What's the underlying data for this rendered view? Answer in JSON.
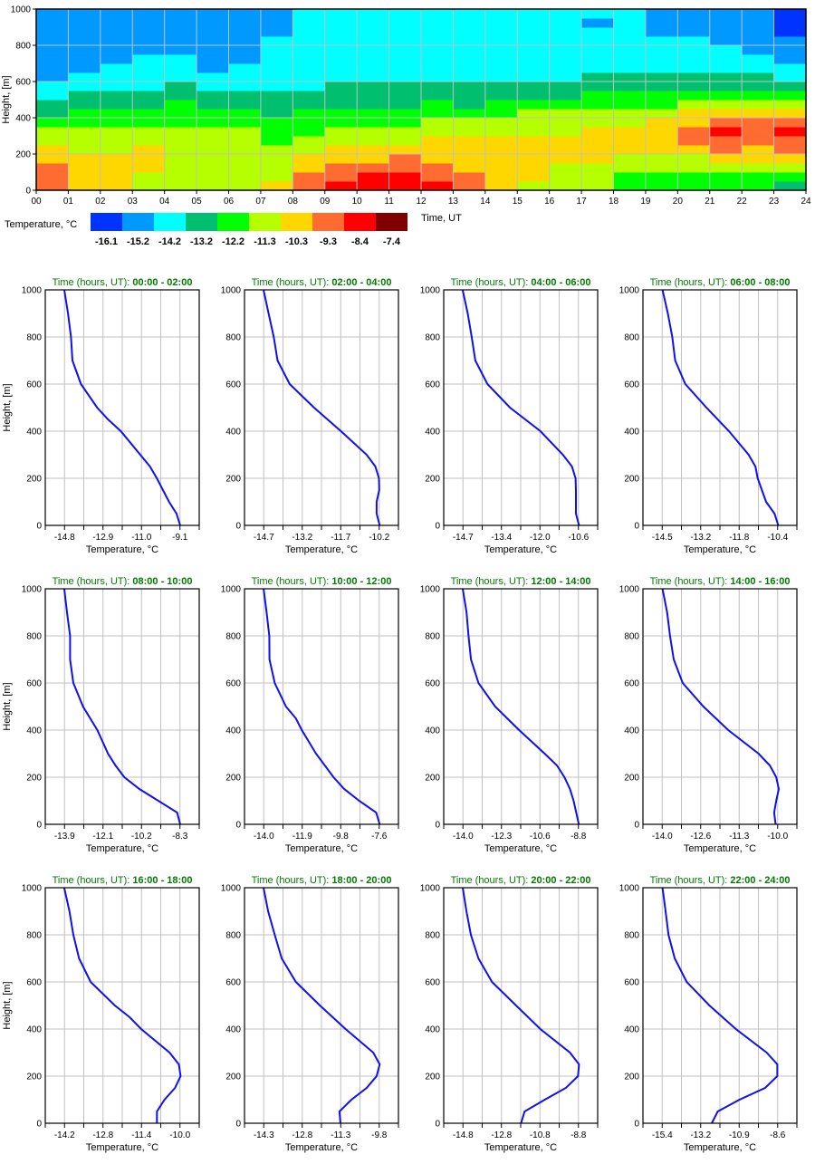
{
  "colors": {
    "scale": [
      "#0033ff",
      "#0099ff",
      "#00ffff",
      "#00c070",
      "#00ff00",
      "#b5ff00",
      "#ffd700",
      "#ff6b30",
      "#ff0000",
      "#800000"
    ],
    "profile_line": "#1010ee",
    "title": "#007a00",
    "grid": "#c0c0c0"
  },
  "chart_data": [
    {
      "type": "heatmap",
      "ylabel": "Height, [m]",
      "xlabel": "Time, UT",
      "xticks": [
        "00",
        "01",
        "02",
        "03",
        "04",
        "05",
        "06",
        "07",
        "08",
        "09",
        "10",
        "11",
        "12",
        "13",
        "14",
        "15",
        "16",
        "17",
        "18",
        "19",
        "20",
        "21",
        "22",
        "23",
        "24"
      ],
      "yticks": [
        "0",
        "200",
        "400",
        "600",
        "800",
        "1000"
      ],
      "xlim": [
        0,
        24
      ],
      "ylim": [
        0,
        1000
      ],
      "height_step_m": 50,
      "colorbar": {
        "label": "Temperature, °C",
        "values": [
          "-16.1",
          "-15.2",
          "-14.2",
          "-13.2",
          "-12.2",
          "-11.3",
          "-10.3",
          "-9.3",
          "-8.4",
          "-7.4"
        ]
      },
      "levels_by_hour_bottom_to_top": [
        [
          7,
          7,
          7,
          6,
          6,
          5,
          5,
          4,
          3,
          3,
          2,
          2,
          1,
          1,
          1,
          1,
          1,
          1,
          1,
          1
        ],
        [
          6,
          6,
          6,
          6,
          5,
          5,
          5,
          4,
          4,
          3,
          3,
          2,
          2,
          1,
          1,
          1,
          1,
          1,
          1,
          1
        ],
        [
          6,
          6,
          6,
          6,
          5,
          5,
          5,
          4,
          4,
          3,
          3,
          2,
          2,
          2,
          1,
          1,
          1,
          1,
          1,
          1
        ],
        [
          5,
          5,
          6,
          6,
          6,
          5,
          5,
          4,
          4,
          3,
          3,
          2,
          2,
          2,
          2,
          1,
          1,
          1,
          1,
          1
        ],
        [
          5,
          5,
          5,
          5,
          5,
          5,
          5,
          4,
          4,
          4,
          3,
          3,
          2,
          2,
          2,
          1,
          1,
          1,
          1,
          1
        ],
        [
          5,
          5,
          5,
          5,
          5,
          5,
          5,
          4,
          4,
          3,
          3,
          2,
          2,
          1,
          1,
          1,
          1,
          1,
          1,
          1
        ],
        [
          5,
          5,
          5,
          5,
          5,
          5,
          5,
          4,
          4,
          3,
          3,
          2,
          2,
          2,
          1,
          1,
          1,
          1,
          1,
          1
        ],
        [
          6,
          5,
          5,
          5,
          5,
          4,
          4,
          4,
          3,
          3,
          3,
          2,
          2,
          2,
          2,
          2,
          2,
          1,
          1,
          1
        ],
        [
          7,
          7,
          6,
          6,
          5,
          5,
          4,
          4,
          4,
          3,
          3,
          2,
          2,
          2,
          2,
          2,
          2,
          2,
          2,
          2
        ],
        [
          8,
          7,
          7,
          6,
          6,
          5,
          5,
          4,
          4,
          3,
          3,
          3,
          2,
          2,
          2,
          2,
          2,
          2,
          2,
          2
        ],
        [
          8,
          8,
          7,
          6,
          6,
          5,
          5,
          4,
          4,
          3,
          3,
          3,
          2,
          2,
          2,
          2,
          2,
          2,
          2,
          2
        ],
        [
          8,
          8,
          7,
          7,
          6,
          5,
          5,
          4,
          4,
          3,
          3,
          3,
          2,
          2,
          2,
          2,
          2,
          2,
          2,
          2
        ],
        [
          8,
          7,
          7,
          6,
          6,
          6,
          5,
          5,
          4,
          4,
          3,
          3,
          2,
          2,
          2,
          2,
          2,
          2,
          2,
          2
        ],
        [
          7,
          7,
          6,
          6,
          6,
          6,
          5,
          5,
          4,
          3,
          3,
          3,
          2,
          2,
          2,
          2,
          2,
          2,
          2,
          2
        ],
        [
          6,
          6,
          6,
          6,
          6,
          6,
          5,
          5,
          4,
          4,
          3,
          3,
          2,
          2,
          2,
          2,
          2,
          2,
          2,
          2
        ],
        [
          5,
          6,
          6,
          6,
          6,
          6,
          5,
          5,
          5,
          4,
          3,
          3,
          2,
          2,
          2,
          2,
          2,
          2,
          2,
          2
        ],
        [
          5,
          5,
          5,
          6,
          6,
          6,
          5,
          5,
          5,
          4,
          3,
          3,
          2,
          2,
          2,
          2,
          2,
          2,
          2,
          2
        ],
        [
          5,
          5,
          5,
          6,
          6,
          6,
          6,
          5,
          5,
          4,
          4,
          3,
          3,
          2,
          2,
          2,
          2,
          2,
          1,
          2
        ],
        [
          4,
          4,
          5,
          5,
          6,
          6,
          6,
          5,
          5,
          4,
          4,
          3,
          3,
          2,
          2,
          2,
          2,
          2,
          2,
          2
        ],
        [
          4,
          4,
          5,
          5,
          6,
          6,
          6,
          6,
          5,
          4,
          4,
          3,
          3,
          2,
          2,
          2,
          2,
          1,
          1,
          1
        ],
        [
          4,
          4,
          5,
          5,
          6,
          7,
          7,
          6,
          6,
          5,
          4,
          3,
          3,
          2,
          2,
          2,
          2,
          1,
          1,
          1
        ],
        [
          4,
          4,
          5,
          6,
          7,
          7,
          8,
          7,
          6,
          5,
          4,
          3,
          3,
          2,
          2,
          2,
          1,
          1,
          1,
          1
        ],
        [
          4,
          4,
          5,
          6,
          6,
          7,
          7,
          7,
          6,
          5,
          4,
          3,
          3,
          2,
          2,
          1,
          1,
          1,
          1,
          1
        ],
        [
          3,
          4,
          5,
          6,
          7,
          7,
          8,
          7,
          6,
          5,
          4,
          3,
          2,
          2,
          1,
          1,
          1,
          0,
          0,
          0
        ]
      ]
    },
    {
      "type": "line",
      "title_prefix": "Time (hours, UT): ",
      "xlabel": "Temperature, °C",
      "ylabel": "Height, [m]",
      "yticks": [
        "0",
        "200",
        "400",
        "600",
        "800",
        "1000"
      ],
      "ylim": [
        0,
        1000
      ],
      "panels": [
        {
          "range": "00:00 - 02:00",
          "xticks": [
            "-14.8",
            "-12.9",
            "-11.0",
            "-9.1"
          ],
          "h": [
            0,
            50,
            100,
            200,
            250,
            300,
            400,
            450,
            500,
            600,
            700,
            800,
            900,
            1000
          ],
          "t": [
            -9.09,
            -9.27,
            -9.64,
            -10.24,
            -10.58,
            -11.06,
            -12.02,
            -12.65,
            -13.19,
            -13.99,
            -14.41,
            -14.48,
            -14.63,
            -14.81
          ]
        },
        {
          "range": "02:00 - 04:00",
          "xticks": [
            "-14.7",
            "-13.2",
            "-11.7",
            "-10.2"
          ],
          "h": [
            0,
            50,
            100,
            150,
            200,
            250,
            300,
            400,
            500,
            600,
            700,
            800,
            900,
            1000
          ],
          "t": [
            -10.18,
            -10.3,
            -10.3,
            -10.2,
            -10.21,
            -10.35,
            -10.69,
            -11.69,
            -12.74,
            -13.69,
            -14.16,
            -14.31,
            -14.51,
            -14.71
          ]
        },
        {
          "range": "04:00 - 06:00",
          "xticks": [
            "-14.7",
            "-13.4",
            "-12.0",
            "-10.6"
          ],
          "h": [
            0,
            50,
            150,
            200,
            250,
            300,
            400,
            500,
            600,
            700,
            800,
            900,
            1000
          ],
          "t": [
            -10.58,
            -10.69,
            -10.69,
            -10.7,
            -10.83,
            -11.15,
            -11.95,
            -13.03,
            -13.83,
            -14.26,
            -14.39,
            -14.53,
            -14.71
          ]
        },
        {
          "range": "06:00 - 08:00",
          "xticks": [
            "-14.5",
            "-13.2",
            "-11.8",
            "-10.4"
          ],
          "h": [
            0,
            50,
            100,
            200,
            250,
            300,
            400,
            500,
            600,
            700,
            800,
            900,
            1000
          ],
          "t": [
            -10.38,
            -10.51,
            -10.81,
            -11.11,
            -11.19,
            -11.43,
            -12.13,
            -12.93,
            -13.68,
            -14.04,
            -14.14,
            -14.3,
            -14.49
          ]
        },
        {
          "range": "08:00 - 10:00",
          "xticks": [
            "-13.9",
            "-12.1",
            "-10.2",
            "-8.3"
          ],
          "h": [
            0,
            50,
            100,
            150,
            200,
            250,
            300,
            400,
            500,
            600,
            700,
            800,
            900,
            1000
          ],
          "t": [
            -8.29,
            -8.44,
            -9.35,
            -10.27,
            -11.0,
            -11.43,
            -11.79,
            -12.31,
            -13.0,
            -13.47,
            -13.63,
            -13.63,
            -13.78,
            -13.91
          ]
        },
        {
          "range": "10:00 - 12:00",
          "xticks": [
            "-14.0",
            "-11.9",
            "-9.8",
            "-7.6"
          ],
          "h": [
            0,
            50,
            100,
            150,
            200,
            300,
            400,
            450,
            500,
            600,
            700,
            800,
            900,
            1000
          ],
          "t": [
            -7.57,
            -7.77,
            -8.71,
            -9.54,
            -10.13,
            -11.1,
            -11.89,
            -12.22,
            -12.77,
            -13.39,
            -13.68,
            -13.69,
            -13.84,
            -14.01
          ]
        },
        {
          "range": "12:00 - 14:00",
          "xticks": [
            "-14.0",
            "-12.3",
            "-10.6",
            "-8.8"
          ],
          "h": [
            0,
            100,
            150,
            200,
            250,
            300,
            400,
            500,
            600,
            700,
            800,
            900,
            1000
          ],
          "t": [
            -8.78,
            -9.02,
            -9.18,
            -9.43,
            -9.77,
            -10.32,
            -11.47,
            -12.55,
            -13.3,
            -13.64,
            -13.75,
            -13.84,
            -14.01
          ]
        },
        {
          "range": "14:00 - 16:00",
          "xticks": [
            "-14.0",
            "-12.6",
            "-11.3",
            "-10.0"
          ],
          "h": [
            0,
            50,
            100,
            150,
            200,
            250,
            300,
            400,
            500,
            600,
            700,
            800,
            900,
            1000
          ],
          "t": [
            -10.07,
            -10.12,
            -10.05,
            -9.96,
            -10.05,
            -10.27,
            -10.66,
            -11.71,
            -12.57,
            -13.29,
            -13.6,
            -13.73,
            -13.83,
            -13.99
          ]
        },
        {
          "range": "16:00 - 18:00",
          "xticks": [
            "-14.2",
            "-12.8",
            "-11.4",
            "-10.0"
          ],
          "h": [
            0,
            50,
            100,
            150,
            200,
            250,
            300,
            400,
            450,
            500,
            600,
            700,
            800,
            900,
            1000
          ],
          "t": [
            -10.84,
            -10.84,
            -10.56,
            -10.18,
            -9.98,
            -10.04,
            -10.38,
            -11.41,
            -11.83,
            -12.37,
            -13.25,
            -13.67,
            -13.88,
            -14.02,
            -14.21
          ]
        },
        {
          "range": "18:00 - 20:00",
          "xticks": [
            "-14.3",
            "-12.8",
            "-11.3",
            "-9.8"
          ],
          "h": [
            0,
            50,
            100,
            150,
            200,
            250,
            300,
            400,
            500,
            600,
            700,
            800,
            900,
            1000
          ],
          "t": [
            -11.31,
            -11.35,
            -10.88,
            -10.29,
            -9.9,
            -9.78,
            -10.03,
            -11.11,
            -12.11,
            -13.05,
            -13.6,
            -13.87,
            -14.13,
            -14.31
          ]
        },
        {
          "range": "20:00 - 22:00",
          "xticks": [
            "-14.8",
            "-12.8",
            "-10.8",
            "-8.8"
          ],
          "h": [
            0,
            50,
            100,
            150,
            200,
            250,
            300,
            400,
            500,
            600,
            700,
            800,
            900,
            1000
          ],
          "t": [
            -11.78,
            -11.6,
            -10.55,
            -9.45,
            -8.82,
            -8.77,
            -9.24,
            -10.78,
            -12.04,
            -13.29,
            -14.0,
            -14.39,
            -14.62,
            -14.81
          ]
        },
        {
          "range": "22:00 - 24:00",
          "xticks": [
            "-15.4",
            "-13.2",
            "-10.9",
            "-8.6"
          ],
          "h": [
            0,
            50,
            100,
            150,
            200,
            250,
            300,
            400,
            500,
            600,
            700,
            800,
            900,
            1000
          ],
          "t": [
            -12.48,
            -12.13,
            -10.85,
            -9.34,
            -8.62,
            -8.62,
            -9.25,
            -11.06,
            -12.62,
            -13.96,
            -14.66,
            -15.03,
            -15.2,
            -15.38
          ]
        }
      ]
    }
  ]
}
